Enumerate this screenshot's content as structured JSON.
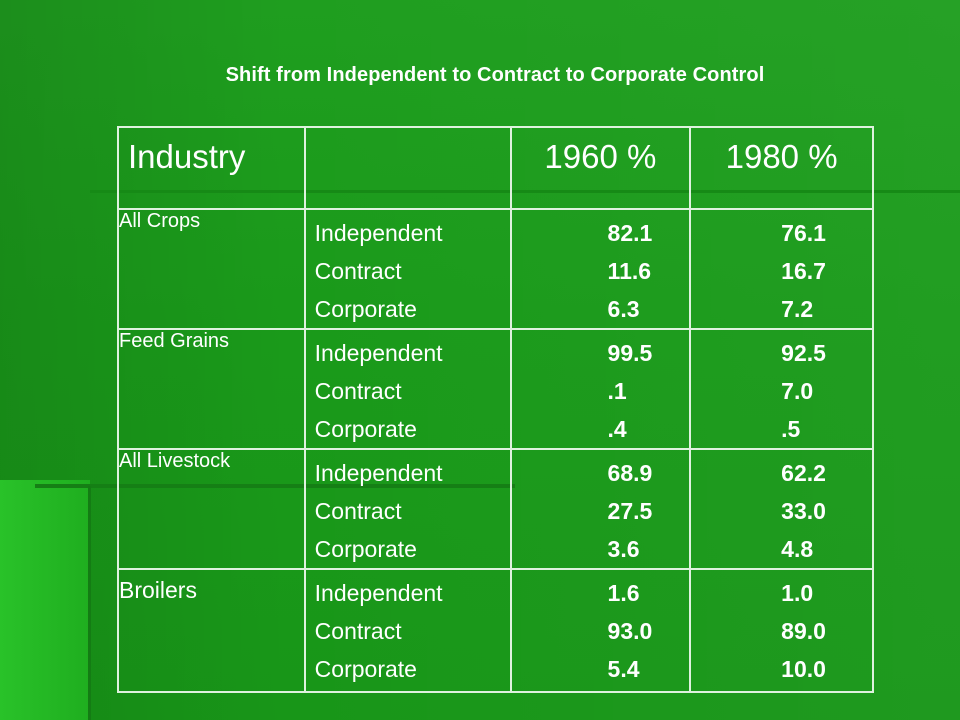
{
  "title": "Shift from Independent to Contract to Corporate Control",
  "table": {
    "headers": {
      "industry": "Industry",
      "blank": "",
      "y1960": "1960 %",
      "y1980": "1980 %"
    },
    "rows": [
      {
        "industry": "All Crops",
        "types": [
          "Independent",
          "Contract",
          "Corporate"
        ],
        "v1960": [
          "82.1",
          "11.6",
          "6.3"
        ],
        "v1980": [
          "76.1",
          "16.7",
          "7.2"
        ]
      },
      {
        "industry": "Feed Grains",
        "types": [
          "Independent",
          "Contract",
          "Corporate"
        ],
        "v1960": [
          "99.5",
          ".1",
          ".4"
        ],
        "v1980": [
          "92.5",
          "7.0",
          ".5"
        ]
      },
      {
        "industry": "All Livestock",
        "types": [
          "Independent",
          "Contract",
          "Corporate"
        ],
        "v1960": [
          "68.9",
          "27.5",
          "3.6"
        ],
        "v1980": [
          "62.2",
          "33.0",
          "4.8"
        ]
      },
      {
        "industry": "Broilers",
        "types": [
          "Independent",
          "Contract",
          "Corporate"
        ],
        "v1960": [
          "1.6",
          "93.0",
          "5.4"
        ],
        "v1980": [
          "1.0",
          "89.0",
          "10.0"
        ]
      }
    ]
  }
}
